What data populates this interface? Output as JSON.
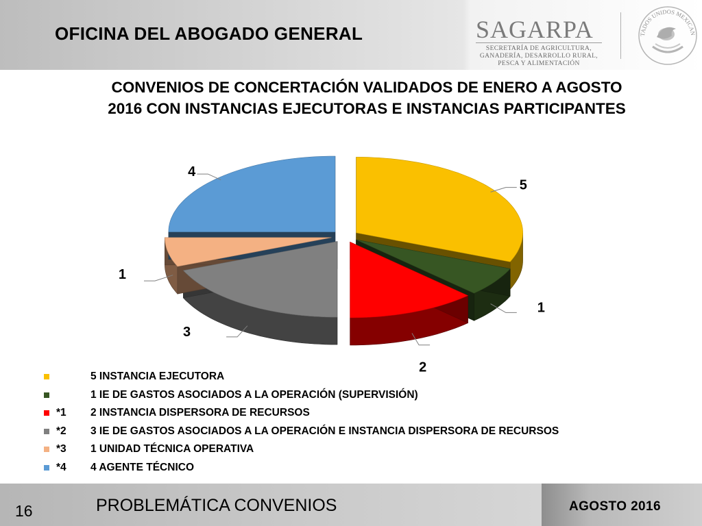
{
  "header": {
    "title": "OFICINA DEL ABOGADO GENERAL",
    "logo_name": "SAGARPA",
    "logo_subtitle": [
      "SECRETARÍA DE AGRICULTURA,",
      "GANADERÍA, DESARROLLO RURAL,",
      "PESCA Y ALIMENTACIÓN"
    ],
    "seal_text": "ESTADOS UNIDOS MEXICANOS"
  },
  "chart_data": {
    "type": "pie",
    "title": "CONVENIOS DE CONCERTACIÓN VALIDADOS DE ENERO A AGOSTO 2016 CON INSTANCIAS EJECUTORAS E INSTANCIAS PARTICIPANTES",
    "exploded": true,
    "three_d": true,
    "legend_position": "bottom",
    "slices": [
      {
        "label": "5 INSTANCIA EJECUTORA",
        "note": "",
        "value": 5,
        "color": "#FAC000"
      },
      {
        "label": "1 IE DE GASTOS ASOCIADOS A LA OPERACIÓN (SUPERVISIÓN)",
        "note": "",
        "value": 1,
        "color": "#375623"
      },
      {
        "label": "2 INSTANCIA DISPERSORA DE RECURSOS",
        "note": "*1",
        "value": 2,
        "color": "#FF0000"
      },
      {
        "label": "3 IE DE GASTOS ASOCIADOS A LA OPERACIÓN E INSTANCIA DISPERSORA DE RECURSOS",
        "note": "*2",
        "value": 3,
        "color": "#808080"
      },
      {
        "label": "1 UNIDAD TÉCNICA OPERATIVA",
        "note": "*3",
        "value": 1,
        "color": "#F4B183"
      },
      {
        "label": "4 AGENTE TÉCNICO",
        "note": "*4",
        "value": 4,
        "color": "#5B9BD5"
      }
    ]
  },
  "footer": {
    "page_number": "16",
    "title": "PROBLEMÁTICA CONVENIOS",
    "date": "AGOSTO 2016"
  }
}
